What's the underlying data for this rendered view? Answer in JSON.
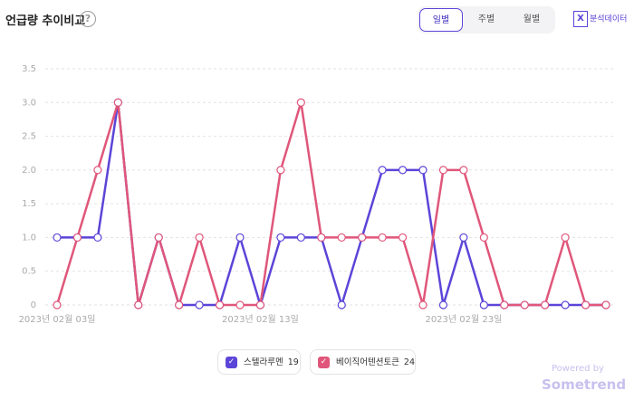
{
  "header": {
    "title": "언급량 추이비교",
    "help": "?"
  },
  "controls": {
    "tabs": [
      "일별",
      "주별",
      "월별"
    ],
    "export_icon": "X",
    "export": "분석데이터"
  },
  "footer": {
    "powered": "Powered by",
    "brand": "Sometrend"
  },
  "chart_data": {
    "type": "line",
    "categories": [
      "2023년 02월 03일",
      null,
      null,
      null,
      null,
      null,
      null,
      null,
      null,
      null,
      "2023년 02월 13일",
      null,
      null,
      null,
      null,
      null,
      null,
      null,
      null,
      null,
      "2023년 02월 23일",
      null,
      null,
      null,
      null,
      null,
      null,
      null
    ],
    "series": [
      {
        "name": "스텔라루멘",
        "total": 19,
        "color": "#5b45d8",
        "values": [
          1,
          1,
          1,
          3,
          0,
          1,
          0,
          0,
          0,
          1,
          0,
          1,
          1,
          1,
          0,
          1,
          2,
          2,
          2,
          0,
          1,
          0,
          0,
          0,
          0,
          0,
          0,
          0
        ]
      },
      {
        "name": "베이직어텐션토큰",
        "total": 24,
        "color": "#e0567a",
        "values": [
          0,
          1,
          2,
          3,
          0,
          1,
          0,
          1,
          0,
          0,
          0,
          2,
          3,
          1,
          1,
          1,
          1,
          1,
          0,
          2,
          2,
          1,
          0,
          0,
          0,
          1,
          0,
          0
        ]
      }
    ],
    "ylim": [
      0,
      3.5
    ],
    "yticks": [
      0,
      0.5,
      {
        "value": 1,
        "label": "1.0"
      },
      1.5,
      {
        "value": 2,
        "label": "2.0"
      },
      2.5,
      {
        "value": 3,
        "label": "3.0"
      },
      3.5
    ],
    "grid": true
  }
}
